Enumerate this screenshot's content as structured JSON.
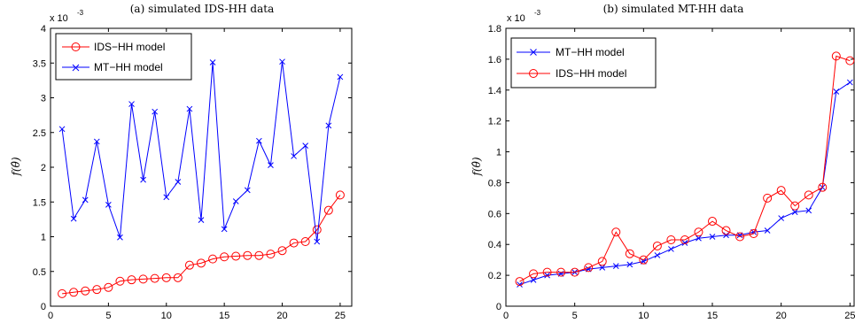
{
  "chart_data": [
    {
      "type": "line",
      "title": "(a) simulated IDS-HH data",
      "xlabel": "",
      "ylabel": "f(θ̂)",
      "y_exponent_label": "x 10",
      "y_exponent_power": "-3",
      "xlim": [
        0,
        26
      ],
      "ylim": [
        0,
        4
      ],
      "xticks": [
        0,
        5,
        10,
        15,
        20,
        25
      ],
      "yticks": [
        0,
        0.5,
        1,
        1.5,
        2,
        2.5,
        3,
        3.5,
        4
      ],
      "legend_position": "top-left",
      "grid": false,
      "x": [
        1,
        2,
        3,
        4,
        5,
        6,
        7,
        8,
        9,
        10,
        11,
        12,
        13,
        14,
        15,
        16,
        17,
        18,
        19,
        20,
        21,
        22,
        23,
        24,
        25
      ],
      "series": [
        {
          "name": "IDS−HH model",
          "color": "#ff0000",
          "marker": "circle",
          "values": [
            0.18,
            0.2,
            0.22,
            0.24,
            0.27,
            0.36,
            0.38,
            0.39,
            0.4,
            0.41,
            0.41,
            0.59,
            0.62,
            0.68,
            0.71,
            0.72,
            0.73,
            0.73,
            0.75,
            0.8,
            0.91,
            0.93,
            1.1,
            1.38,
            1.6
          ]
        },
        {
          "name": "MT−HH model",
          "color": "#0000ff",
          "marker": "x",
          "values": [
            2.55,
            1.26,
            1.53,
            2.37,
            1.46,
            0.99,
            2.91,
            1.82,
            2.8,
            1.57,
            1.79,
            2.84,
            1.24,
            3.51,
            1.11,
            1.51,
            1.67,
            2.38,
            2.03,
            3.52,
            2.16,
            2.31,
            0.93,
            2.6,
            3.3
          ]
        }
      ]
    },
    {
      "type": "line",
      "title": "(b) simulated MT-HH data",
      "xlabel": "",
      "ylabel": "f(θ̂)",
      "y_exponent_label": "x 10",
      "y_exponent_power": "-3",
      "xlim": [
        0,
        25.3
      ],
      "ylim": [
        0,
        1.8
      ],
      "xticks": [
        0,
        5,
        10,
        15,
        20,
        25
      ],
      "yticks": [
        0,
        0.2,
        0.4,
        0.6,
        0.8,
        1,
        1.2,
        1.4,
        1.6,
        1.8
      ],
      "legend_position": "top-left",
      "grid": false,
      "x": [
        1,
        2,
        3,
        4,
        5,
        6,
        7,
        8,
        9,
        10,
        11,
        12,
        13,
        14,
        15,
        16,
        17,
        18,
        19,
        20,
        21,
        22,
        23,
        24,
        25
      ],
      "series": [
        {
          "name": "MT−HH model",
          "color": "#0000ff",
          "marker": "x",
          "values": [
            0.14,
            0.17,
            0.2,
            0.21,
            0.22,
            0.24,
            0.25,
            0.26,
            0.27,
            0.29,
            0.33,
            0.37,
            0.41,
            0.44,
            0.45,
            0.46,
            0.46,
            0.48,
            0.49,
            0.57,
            0.61,
            0.62,
            0.77,
            1.39,
            1.45
          ]
        },
        {
          "name": "IDS−HH model",
          "color": "#ff0000",
          "marker": "circle",
          "values": [
            0.16,
            0.21,
            0.22,
            0.22,
            0.22,
            0.25,
            0.29,
            0.48,
            0.34,
            0.3,
            0.39,
            0.43,
            0.43,
            0.48,
            0.55,
            0.49,
            0.45,
            0.47,
            0.7,
            0.75,
            0.65,
            0.72,
            0.77,
            1.62,
            1.59
          ]
        }
      ]
    }
  ]
}
